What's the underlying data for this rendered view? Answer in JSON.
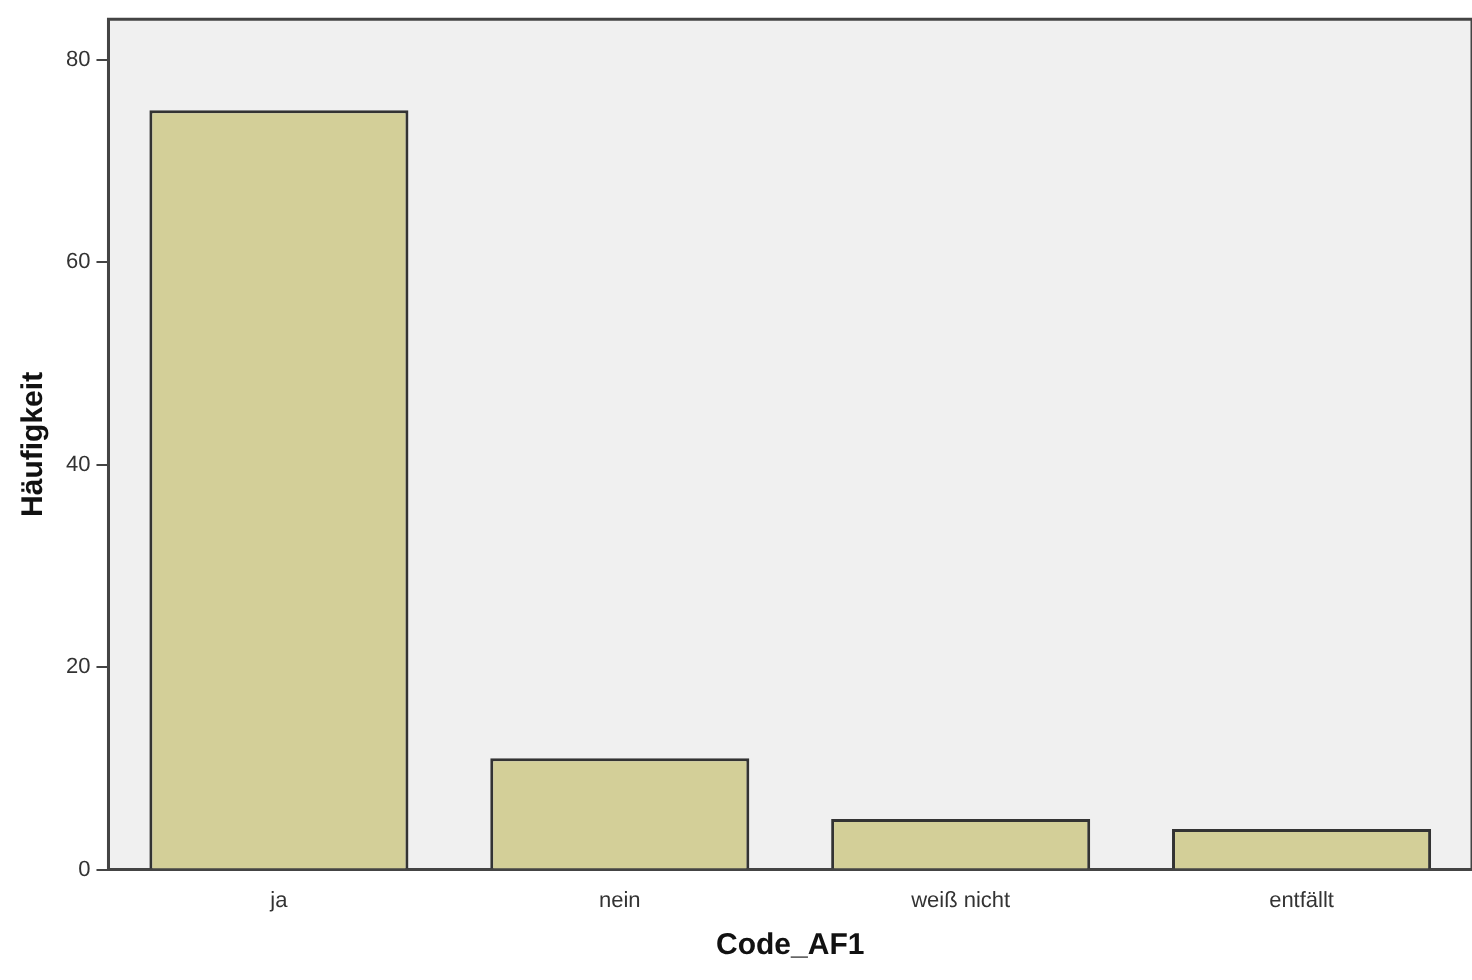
{
  "chart_data": {
    "type": "bar",
    "xlabel": "Code_AF1",
    "ylabel": "Häufigkeit",
    "categories": [
      "ja",
      "nein",
      "weiß nicht",
      "entfällt"
    ],
    "values": [
      75,
      11,
      5,
      4
    ],
    "color": "#d3cf98",
    "ylim": [
      0,
      84
    ],
    "yticks": [
      0,
      20,
      40,
      60,
      80
    ],
    "grid": false,
    "legend": false
  }
}
